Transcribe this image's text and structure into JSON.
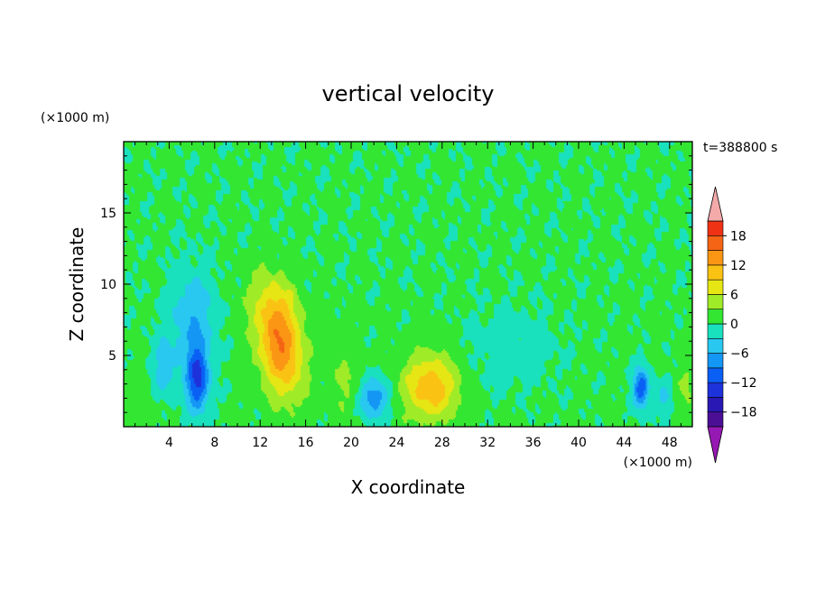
{
  "chart_data": {
    "type": "heatmap",
    "title": "vertical velocity",
    "xlabel": "X coordinate",
    "ylabel": "Z coordinate",
    "x_unit": "(×1000 m)",
    "y_unit": "(×1000 m)",
    "time_label": "t=388800 s",
    "xlim": [
      0,
      50
    ],
    "ylim": [
      0,
      20
    ],
    "x_ticks": [
      4,
      8,
      12,
      16,
      20,
      24,
      28,
      32,
      36,
      40,
      44,
      48
    ],
    "y_ticks": [
      5,
      10,
      15
    ],
    "background_value": 0.5,
    "features": [
      {
        "x": 13.5,
        "z": 6.5,
        "amp": 12,
        "sx": 1.3,
        "sz": 2.2
      },
      {
        "x": 14.5,
        "z": 4.0,
        "amp": 6,
        "sx": 1.2,
        "sz": 2.0
      },
      {
        "x": 12.5,
        "z": 9.0,
        "amp": 3,
        "sx": 1.5,
        "sz": 1.5
      },
      {
        "x": 27.0,
        "z": 2.8,
        "amp": 11,
        "sx": 1.7,
        "sz": 1.6
      },
      {
        "x": 19.5,
        "z": 2.8,
        "amp": 3,
        "sx": 1.0,
        "sz": 1.5
      },
      {
        "x": 6.5,
        "z": 3.3,
        "amp": -13,
        "sx": 0.7,
        "sz": 1.6
      },
      {
        "x": 6.0,
        "z": 7.5,
        "amp": -6,
        "sx": 1.4,
        "sz": 2.5
      },
      {
        "x": 3.5,
        "z": 4.0,
        "amp": -5,
        "sx": 0.8,
        "sz": 1.5
      },
      {
        "x": 22.0,
        "z": 2.0,
        "amp": -9,
        "sx": 0.9,
        "sz": 1.0
      },
      {
        "x": 45.5,
        "z": 2.7,
        "amp": -12,
        "sx": 0.5,
        "sz": 1.0
      },
      {
        "x": 47.5,
        "z": 2.0,
        "amp": -4,
        "sx": 0.5,
        "sz": 0.9
      },
      {
        "x": 34.0,
        "z": 5.5,
        "amp": -2,
        "sx": 3.0,
        "sz": 2.0
      },
      {
        "x": 49.5,
        "z": 2.5,
        "amp": 3,
        "sx": 0.6,
        "sz": 1.2
      },
      {
        "x": 18.5,
        "z": 6.0,
        "amp": 1.5,
        "sx": 1.2,
        "sz": 1.2
      },
      {
        "x": 1.5,
        "z": 2.0,
        "amp": 1.5,
        "sx": 1.2,
        "sz": 1.5
      }
    ],
    "colorbar": {
      "levels": [
        -21,
        -18,
        -15,
        -12,
        -9,
        -6,
        -3,
        0,
        3,
        6,
        9,
        12,
        15,
        18,
        21
      ],
      "tick_values": [
        18,
        12,
        6,
        0,
        -6,
        -12,
        -18
      ],
      "tick_labels": [
        "18",
        "12",
        "6",
        "0",
        "−6",
        "−12",
        "−18"
      ],
      "colors": [
        "#4b0f96",
        "#2a18b4",
        "#1e32dc",
        "#0a5ff5",
        "#1496f5",
        "#28c8f0",
        "#19e1be",
        "#32e632",
        "#a0eb28",
        "#e6e614",
        "#fac314",
        "#fa9614",
        "#f56414",
        "#f03214",
        "#e61414"
      ],
      "over_color": "#f5aaaa",
      "under_color": "#9619b4"
    }
  }
}
